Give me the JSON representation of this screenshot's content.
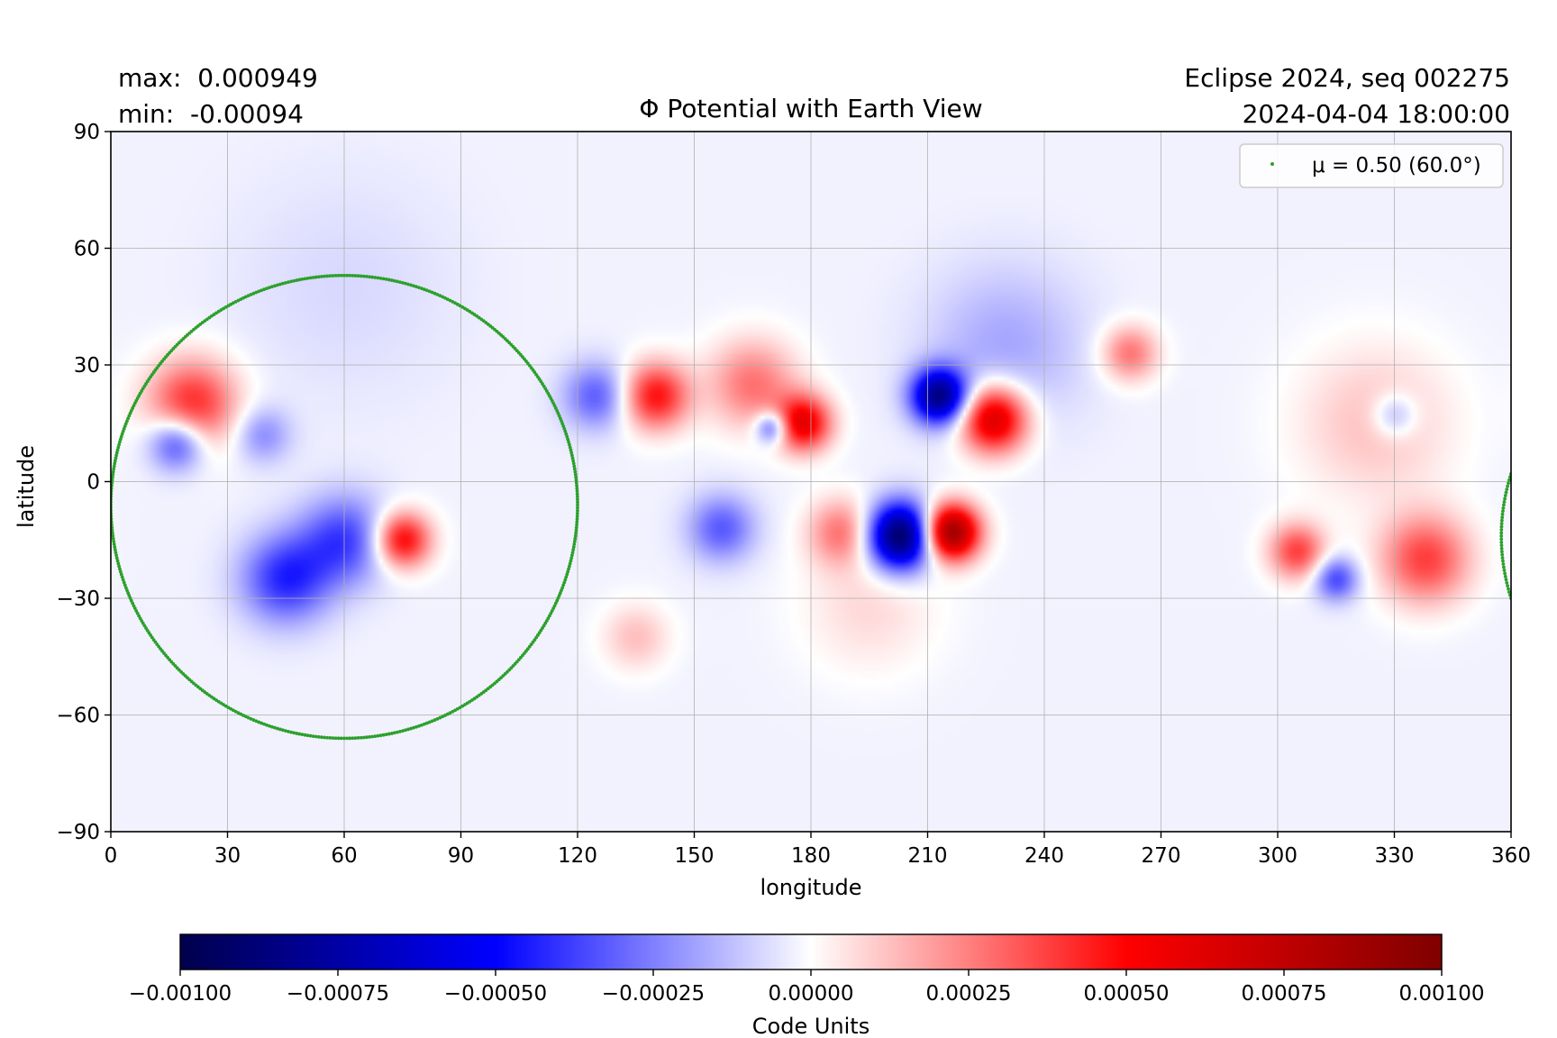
{
  "chart_data": {
    "type": "heatmap",
    "title": "Φ Potential with Earth View",
    "stats": {
      "max_label": "max:  0.000949",
      "min_label": "min:  -0.00094"
    },
    "info": {
      "line1": "Eclipse 2024, seq 002275",
      "line2": "2024-04-04 18:00:00"
    },
    "xlabel": "longitude",
    "ylabel": "latitude",
    "xlim": [
      0,
      360
    ],
    "ylim": [
      -90,
      90
    ],
    "x_ticks": [
      0,
      30,
      60,
      90,
      120,
      150,
      180,
      210,
      240,
      270,
      300,
      330,
      360
    ],
    "x_tick_labels": [
      "0",
      "30",
      "60",
      "90",
      "120",
      "150",
      "180",
      "210",
      "240",
      "270",
      "300",
      "330",
      "360"
    ],
    "y_ticks": [
      90,
      60,
      30,
      0,
      -30,
      -60,
      -90
    ],
    "y_tick_labels": [
      "90",
      "60",
      "30",
      "0",
      "−30",
      "−60",
      "−90"
    ],
    "grid": true,
    "colormap": "seismic",
    "colorbar": {
      "label": "Code Units",
      "range": [
        -0.001,
        0.001
      ],
      "ticks": [
        -0.001,
        -0.00075,
        -0.0005,
        -0.00025,
        0,
        0.00025,
        0.0005,
        0.00075,
        0.001
      ],
      "tick_labels": [
        "−0.00100",
        "−0.00075",
        "−0.00050",
        "−0.00025",
        "0.00000",
        "0.00025",
        "0.00050",
        "0.00075",
        "0.00100"
      ]
    },
    "legend": {
      "label": "μ = 0.50 (60.0°)",
      "placement": "top-right",
      "color": "#2ca02c"
    },
    "earth_view_contour": {
      "center_lon": 60,
      "center_lat": -6,
      "lon_half_width": 60,
      "lat_top": 53,
      "lat_bottom": -66,
      "wrapped_edge_segment": {
        "lon": 360,
        "lat_range": [
          -30,
          2
        ]
      }
    },
    "features": [
      {
        "lon": 213,
        "lat": 22,
        "v": -0.0008,
        "s": 5
      },
      {
        "lon": 227,
        "lat": 16,
        "v": 0.0007,
        "s": 6
      },
      {
        "lon": 203,
        "lat": -14,
        "v": -0.00094,
        "s": 6
      },
      {
        "lon": 216,
        "lat": -13,
        "v": 0.000949,
        "s": 5
      },
      {
        "lon": 178,
        "lat": 15,
        "v": 0.0006,
        "s": 5
      },
      {
        "lon": 170,
        "lat": 14,
        "v": -0.0004,
        "s": 3
      },
      {
        "lon": 140,
        "lat": 22,
        "v": 0.0005,
        "s": 6
      },
      {
        "lon": 125,
        "lat": 22,
        "v": -0.0003,
        "s": 6
      },
      {
        "lon": 21,
        "lat": 20,
        "v": 0.00045,
        "s": 8
      },
      {
        "lon": 17,
        "lat": 10,
        "v": -0.0004,
        "s": 5
      },
      {
        "lon": 39,
        "lat": 12,
        "v": -0.0002,
        "s": 5
      },
      {
        "lon": 75,
        "lat": -15,
        "v": 0.00055,
        "s": 5
      },
      {
        "lon": 45,
        "lat": -25,
        "v": -0.0004,
        "s": 8
      },
      {
        "lon": 60,
        "lat": -15,
        "v": -0.00035,
        "s": 8
      },
      {
        "lon": 305,
        "lat": -18,
        "v": 0.0004,
        "s": 5
      },
      {
        "lon": 315,
        "lat": -25,
        "v": -0.00035,
        "s": 4
      },
      {
        "lon": 338,
        "lat": -20,
        "v": 0.0004,
        "s": 8
      },
      {
        "lon": 325,
        "lat": 15,
        "v": 0.00015,
        "s": 14
      },
      {
        "lon": 330,
        "lat": 17,
        "v": -0.0002,
        "s": 4
      },
      {
        "lon": 157,
        "lat": -12,
        "v": -0.0003,
        "s": 6
      },
      {
        "lon": 188,
        "lat": -13,
        "v": 0.0003,
        "s": 6
      },
      {
        "lon": 230,
        "lat": 35,
        "v": -0.00015,
        "s": 14
      },
      {
        "lon": 262,
        "lat": 33,
        "v": 0.0003,
        "s": 5
      },
      {
        "lon": 165,
        "lat": 25,
        "v": 0.0003,
        "s": 8
      },
      {
        "lon": 195,
        "lat": -32,
        "v": 0.0001,
        "s": 12
      },
      {
        "lon": 135,
        "lat": -40,
        "v": 0.00015,
        "s": 6
      },
      {
        "lon": 60,
        "lat": 50,
        "v": -5e-05,
        "s": 20
      }
    ]
  }
}
